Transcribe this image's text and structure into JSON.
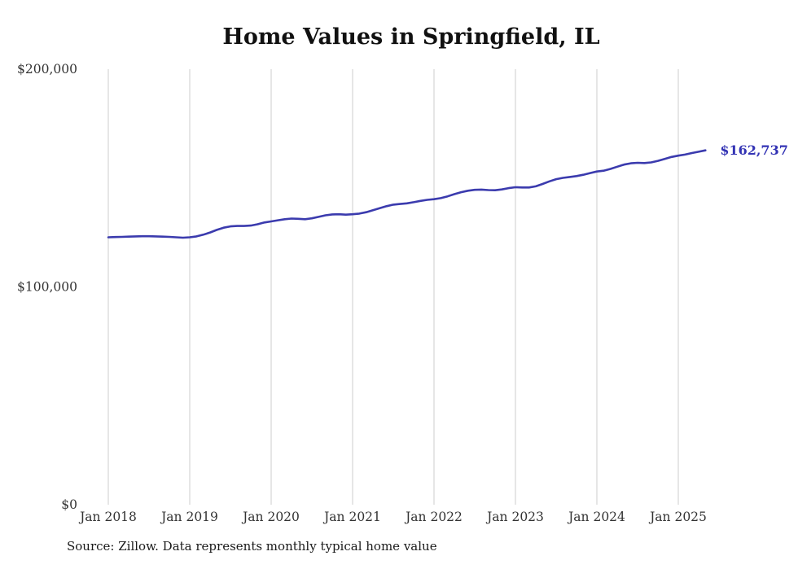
{
  "title": "Home Values in Springfield, IL",
  "source_note": "Source: Zillow. Data represents monthly typical home value",
  "chart_data": {
    "type": "line",
    "title": "Home Values in Springfield, IL",
    "series_name": "Typical home value",
    "x": [
      "2018-01",
      "2018-02",
      "2018-03",
      "2018-04",
      "2018-05",
      "2018-06",
      "2018-07",
      "2018-08",
      "2018-09",
      "2018-10",
      "2018-11",
      "2018-12",
      "2019-01",
      "2019-02",
      "2019-03",
      "2019-04",
      "2019-05",
      "2019-06",
      "2019-07",
      "2019-08",
      "2019-09",
      "2019-10",
      "2019-11",
      "2019-12",
      "2020-01",
      "2020-02",
      "2020-03",
      "2020-04",
      "2020-05",
      "2020-06",
      "2020-07",
      "2020-08",
      "2020-09",
      "2020-10",
      "2020-11",
      "2020-12",
      "2021-01",
      "2021-02",
      "2021-03",
      "2021-04",
      "2021-05",
      "2021-06",
      "2021-07",
      "2021-08",
      "2021-09",
      "2021-10",
      "2021-11",
      "2021-12",
      "2022-01",
      "2022-02",
      "2022-03",
      "2022-04",
      "2022-05",
      "2022-06",
      "2022-07",
      "2022-08",
      "2022-09",
      "2022-10",
      "2022-11",
      "2022-12",
      "2023-01",
      "2023-02",
      "2023-03",
      "2023-04",
      "2023-05",
      "2023-06",
      "2023-07",
      "2023-08",
      "2023-09",
      "2023-10",
      "2023-11",
      "2023-12",
      "2024-01",
      "2024-02",
      "2024-03",
      "2024-04",
      "2024-05",
      "2024-06",
      "2024-07",
      "2024-08",
      "2024-09",
      "2024-10",
      "2024-11",
      "2024-12",
      "2025-01",
      "2025-02",
      "2025-03",
      "2025-04",
      "2025-05"
    ],
    "values": [
      122800,
      122900,
      123000,
      123100,
      123200,
      123300,
      123300,
      123200,
      123100,
      123000,
      122800,
      122600,
      122800,
      123200,
      124000,
      125000,
      126200,
      127200,
      127800,
      128000,
      128000,
      128200,
      128800,
      129600,
      130100,
      130600,
      131100,
      131400,
      131300,
      131100,
      131500,
      132200,
      132900,
      133300,
      133400,
      133200,
      133400,
      133700,
      134300,
      135200,
      136200,
      137100,
      137800,
      138100,
      138400,
      138900,
      139500,
      140000,
      140300,
      140800,
      141600,
      142600,
      143500,
      144200,
      144600,
      144700,
      144500,
      144400,
      144800,
      145400,
      145800,
      145700,
      145700,
      146200,
      147300,
      148500,
      149500,
      150100,
      150500,
      150900,
      151500,
      152300,
      153000,
      153400,
      154200,
      155200,
      156200,
      156800,
      157000,
      156900,
      157200,
      157900,
      158800,
      159700,
      160300,
      160800,
      161500,
      162100,
      162737
    ],
    "ylim": [
      0,
      200000
    ],
    "yticks": [
      {
        "value": 0,
        "label": "$0"
      },
      {
        "value": 100000,
        "label": "$100,000"
      },
      {
        "value": 200000,
        "label": "$200,000"
      }
    ],
    "xticks": [
      {
        "x": "2018-01",
        "label": "Jan 2018"
      },
      {
        "x": "2019-01",
        "label": "Jan 2019"
      },
      {
        "x": "2020-01",
        "label": "Jan 2020"
      },
      {
        "x": "2021-01",
        "label": "Jan 2021"
      },
      {
        "x": "2022-01",
        "label": "Jan 2022"
      },
      {
        "x": "2023-01",
        "label": "Jan 2023"
      },
      {
        "x": "2024-01",
        "label": "Jan 2024"
      },
      {
        "x": "2025-01",
        "label": "Jan 2025"
      }
    ],
    "grid": "vertical-only",
    "legend": "none",
    "line_color": "#3b3bae",
    "grid_color": "#cccccc",
    "tick_color": "#333333",
    "end_label": "$162,737",
    "end_label_color": "#3333b4"
  }
}
